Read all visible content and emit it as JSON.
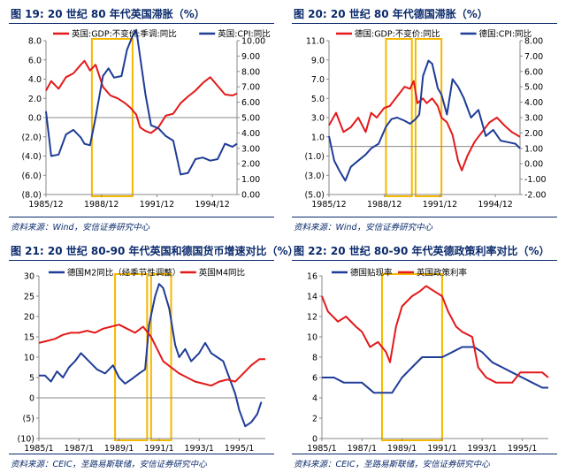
{
  "colors": {
    "red": "#e3191b",
    "blue": "#1f3c97",
    "highlight": "#f5b800",
    "axis": "#888888",
    "title": "#0a2a6b"
  },
  "chart_data": [
    {
      "type": "line",
      "title": "图 19:  20 世纪 80 年代英国滞胀（%）",
      "source": "资料来源：Wind，安信证券研究中心",
      "x_labels": [
        "1985/12",
        "1988/12",
        "1991/12",
        "1994/12"
      ],
      "x_range": [
        1985.917,
        1996.25
      ],
      "y_left": {
        "min": -8,
        "max": 8,
        "ticks": [
          "(8.0)",
          "(6.0)",
          "(4.0)",
          "(2.0)",
          "0.0",
          "2.0",
          "4.0",
          "6.0",
          "8.0"
        ]
      },
      "y_right": {
        "min": 0,
        "max": 10,
        "ticks": [
          "0.00",
          "1.00",
          "2.00",
          "3.00",
          "4.00",
          "5.00",
          "6.00",
          "7.00",
          "8.00",
          "9.00",
          "10.00"
        ]
      },
      "highlights": [
        [
          1988.4,
          1990.6
        ]
      ],
      "series": [
        {
          "name": "英国:GDP:不变价:季调:同比",
          "axis": "left",
          "color": "red",
          "x": [
            1985.917,
            1986.2,
            1986.6,
            1987.0,
            1987.4,
            1987.8,
            1988.0,
            1988.3,
            1988.6,
            1989.0,
            1989.4,
            1989.8,
            1990.2,
            1990.5,
            1990.8,
            1991.0,
            1991.3,
            1991.6,
            1992.0,
            1992.4,
            1992.8,
            1993.2,
            1993.6,
            1994.0,
            1994.4,
            1994.8,
            1995.2,
            1995.6,
            1996.0,
            1996.25
          ],
          "y": [
            2.8,
            3.8,
            3.0,
            4.2,
            4.6,
            5.5,
            5.9,
            4.9,
            5.5,
            3.2,
            2.3,
            2.0,
            1.5,
            1.0,
            0.3,
            -1.0,
            -1.4,
            -1.6,
            -1.0,
            0.2,
            0.4,
            1.5,
            2.2,
            2.8,
            3.6,
            4.2,
            3.3,
            2.4,
            2.3,
            2.5
          ]
        },
        {
          "name": "英国:CPI:同比",
          "axis": "right",
          "color": "blue",
          "x": [
            1985.917,
            1986.2,
            1986.6,
            1987.0,
            1987.4,
            1987.8,
            1988.0,
            1988.3,
            1988.6,
            1989.0,
            1989.3,
            1989.6,
            1990.0,
            1990.3,
            1990.6,
            1990.8,
            1991.0,
            1991.3,
            1991.6,
            1992.0,
            1992.4,
            1992.8,
            1993.2,
            1993.6,
            1994.0,
            1994.4,
            1994.8,
            1995.2,
            1995.6,
            1996.0,
            1996.25
          ],
          "y": [
            5.4,
            2.5,
            2.6,
            3.9,
            4.2,
            3.7,
            3.3,
            3.2,
            5.0,
            7.7,
            8.2,
            7.6,
            7.7,
            9.4,
            10.3,
            10.7,
            9.0,
            6.5,
            4.5,
            4.3,
            3.8,
            3.5,
            1.3,
            1.4,
            2.3,
            2.4,
            2.2,
            2.3,
            3.3,
            3.1,
            3.3
          ]
        }
      ]
    },
    {
      "type": "line",
      "title": "图 20:  20 世纪 80 年代德国滞胀（%）",
      "source": "资料来源：Wind，安信证券研究中心",
      "x_labels": [
        "1985/12",
        "1988/12",
        "1991/12",
        "1994/12"
      ],
      "x_range": [
        1985.917,
        1996.25
      ],
      "y_left": {
        "min": -5,
        "max": 11,
        "ticks": [
          "(5.0)",
          "(3.0)",
          "(1.0)",
          "1.0",
          "3.0",
          "5.0",
          "7.0",
          "9.0",
          "11.0"
        ]
      },
      "y_right": {
        "min": -2,
        "max": 8,
        "ticks": [
          "-2.00",
          "-1.00",
          "0.00",
          "1.00",
          "2.00",
          "3.00",
          "4.00",
          "5.00",
          "6.00",
          "7.00",
          "8.00"
        ]
      },
      "highlights": [
        [
          1989.0,
          1990.4
        ],
        [
          1990.6,
          1992.0
        ]
      ],
      "series": [
        {
          "name": "德国:GDP:不变价:同比",
          "axis": "left",
          "color": "red",
          "x": [
            1985.917,
            1986.3,
            1986.7,
            1987.1,
            1987.5,
            1987.9,
            1988.2,
            1988.5,
            1988.9,
            1989.2,
            1989.6,
            1990.0,
            1990.3,
            1990.5,
            1990.7,
            1991.0,
            1991.2,
            1991.5,
            1991.8,
            1992.0,
            1992.3,
            1992.6,
            1992.9,
            1993.1,
            1993.4,
            1993.8,
            1994.2,
            1994.6,
            1995.0,
            1995.4,
            1995.8,
            1996.25
          ],
          "y": [
            2.2,
            3.5,
            1.5,
            2.0,
            3.0,
            1.5,
            3.5,
            3.0,
            4.0,
            4.2,
            5.2,
            6.2,
            6.0,
            6.8,
            4.5,
            5.0,
            4.5,
            5.0,
            4.2,
            3.0,
            2.5,
            1.2,
            -1.5,
            -2.5,
            -1.0,
            0.5,
            1.5,
            2.5,
            3.0,
            2.2,
            1.5,
            1.0
          ]
        },
        {
          "name": "德国:CPI:同比",
          "axis": "right",
          "color": "blue",
          "x": [
            1985.917,
            1986.2,
            1986.5,
            1986.8,
            1987.1,
            1987.5,
            1987.9,
            1988.2,
            1988.6,
            1989.0,
            1989.3,
            1989.6,
            1990.0,
            1990.3,
            1990.6,
            1990.8,
            1991.0,
            1991.3,
            1991.5,
            1991.8,
            1992.0,
            1992.3,
            1992.6,
            1992.9,
            1993.2,
            1993.6,
            1994.0,
            1994.4,
            1994.8,
            1995.2,
            1995.6,
            1996.0,
            1996.25
          ],
          "y": [
            1.8,
            0.2,
            -0.5,
            -1.1,
            -0.2,
            0.2,
            0.6,
            1.0,
            1.3,
            2.4,
            2.9,
            3.0,
            2.8,
            2.6,
            2.9,
            3.2,
            5.7,
            6.7,
            6.5,
            4.9,
            4.5,
            3.2,
            5.5,
            5.0,
            4.3,
            3.0,
            3.5,
            1.8,
            2.2,
            1.5,
            1.4,
            1.3,
            1.0
          ]
        }
      ]
    },
    {
      "type": "line",
      "title": "图 21:  20 世纪 80-90 年代英国和德国货币增速对比（%）",
      "source": "资料来源：CEIC，圣路易斯联储，安信证券研究中心",
      "x_labels": [
        "1985/1",
        "1987/1",
        "1989/1",
        "1991/1",
        "1993/1",
        "1995/1"
      ],
      "x_range": [
        1985.0,
        1996.3
      ],
      "y_left": {
        "min": -10,
        "max": 30,
        "ticks": [
          "(10)",
          "(5)",
          "0",
          "5",
          "10",
          "15",
          "20",
          "25",
          "30"
        ]
      },
      "highlights": [
        [
          1988.8,
          1990.4
        ],
        [
          1990.6,
          1991.6
        ]
      ],
      "series": [
        {
          "name": "德国M2同比（经季节性调整）",
          "axis": "left",
          "color": "blue",
          "x": [
            1985.0,
            1985.3,
            1985.6,
            1985.9,
            1986.2,
            1986.5,
            1986.8,
            1987.1,
            1987.5,
            1987.9,
            1988.3,
            1988.7,
            1989.0,
            1989.3,
            1989.6,
            1990.0,
            1990.3,
            1990.5,
            1990.8,
            1991.0,
            1991.2,
            1991.5,
            1991.8,
            1992.0,
            1992.3,
            1992.6,
            1993.0,
            1993.3,
            1993.6,
            1993.9,
            1994.2,
            1994.5,
            1994.8,
            1995.0,
            1995.3,
            1995.6,
            1995.9,
            1996.1
          ],
          "y": [
            5.5,
            5.5,
            4.0,
            6.5,
            5.0,
            7.5,
            9.0,
            11.0,
            9.0,
            7.0,
            6.0,
            8.0,
            5.0,
            3.5,
            4.5,
            6.0,
            7.0,
            18.0,
            25.0,
            28.0,
            27.0,
            22.0,
            13.0,
            10.0,
            12.0,
            9.0,
            11.0,
            13.5,
            11.0,
            10.0,
            9.0,
            5.0,
            1.0,
            -3.0,
            -7.0,
            -6.0,
            -4.0,
            -1.0
          ]
        },
        {
          "name": "英国M4同比",
          "axis": "left",
          "color": "red",
          "x": [
            1985.0,
            1985.4,
            1985.8,
            1986.2,
            1986.6,
            1987.0,
            1987.4,
            1987.8,
            1988.2,
            1988.6,
            1989.0,
            1989.4,
            1989.8,
            1990.2,
            1990.6,
            1990.9,
            1991.2,
            1991.6,
            1992.0,
            1992.4,
            1992.8,
            1993.2,
            1993.6,
            1994.0,
            1994.4,
            1994.8,
            1995.2,
            1995.6,
            1996.0,
            1996.3
          ],
          "y": [
            13.5,
            14.0,
            14.5,
            15.5,
            16.0,
            16.0,
            16.5,
            16.0,
            17.0,
            17.5,
            18.0,
            17.0,
            16.0,
            17.5,
            15.0,
            12.0,
            9.0,
            7.5,
            6.0,
            5.0,
            4.0,
            3.5,
            3.0,
            4.0,
            4.5,
            4.0,
            6.0,
            8.0,
            9.5,
            9.5
          ]
        }
      ]
    },
    {
      "type": "line",
      "title": "图 22:  20 世纪 80-90 年代英德政策利率对比（%）",
      "source": "资料来源：CEIC，圣路易斯联储，安信证券研究中心",
      "x_labels": [
        "1985/1",
        "1987/1",
        "1989/1",
        "1991/1",
        "1993/1",
        "1995/1"
      ],
      "x_range": [
        1985.0,
        1996.3
      ],
      "y_left": {
        "min": 0,
        "max": 16,
        "ticks": [
          "0",
          "2",
          "4",
          "6",
          "8",
          "10",
          "12",
          "14",
          "16"
        ]
      },
      "highlights": [
        [
          1988.0,
          1991.0
        ]
      ],
      "series": [
        {
          "name": "德国贴现率",
          "axis": "left",
          "color": "blue",
          "x": [
            1985.0,
            1985.6,
            1986.1,
            1987.0,
            1987.6,
            1988.0,
            1988.5,
            1989.0,
            1989.5,
            1990.0,
            1990.5,
            1991.0,
            1991.5,
            1992.0,
            1992.6,
            1993.0,
            1993.5,
            1994.0,
            1994.5,
            1995.0,
            1995.5,
            1996.0,
            1996.3
          ],
          "y": [
            6.0,
            6.0,
            5.5,
            5.5,
            4.5,
            4.5,
            4.5,
            6.0,
            7.0,
            8.0,
            8.0,
            8.0,
            8.5,
            9.0,
            9.0,
            8.5,
            7.5,
            7.0,
            6.5,
            6.0,
            5.5,
            5.0,
            5.0
          ]
        },
        {
          "name": "英国政策利率",
          "axis": "left",
          "color": "red",
          "x": [
            1985.0,
            1985.3,
            1985.8,
            1986.2,
            1986.7,
            1987.0,
            1987.4,
            1987.8,
            1988.2,
            1988.4,
            1988.7,
            1989.0,
            1989.5,
            1989.9,
            1990.2,
            1990.6,
            1991.0,
            1991.3,
            1991.7,
            1992.0,
            1992.5,
            1992.8,
            1993.2,
            1993.7,
            1994.0,
            1994.5,
            1994.9,
            1995.3,
            1995.8,
            1996.0,
            1996.3
          ],
          "y": [
            14.0,
            12.5,
            11.5,
            12.0,
            11.0,
            10.5,
            9.0,
            9.5,
            8.5,
            7.5,
            11.0,
            13.0,
            14.0,
            14.5,
            15.0,
            14.5,
            14.0,
            12.5,
            11.0,
            10.5,
            10.0,
            7.0,
            6.0,
            5.5,
            5.5,
            5.5,
            6.5,
            6.5,
            6.5,
            6.5,
            6.0
          ]
        }
      ]
    }
  ]
}
